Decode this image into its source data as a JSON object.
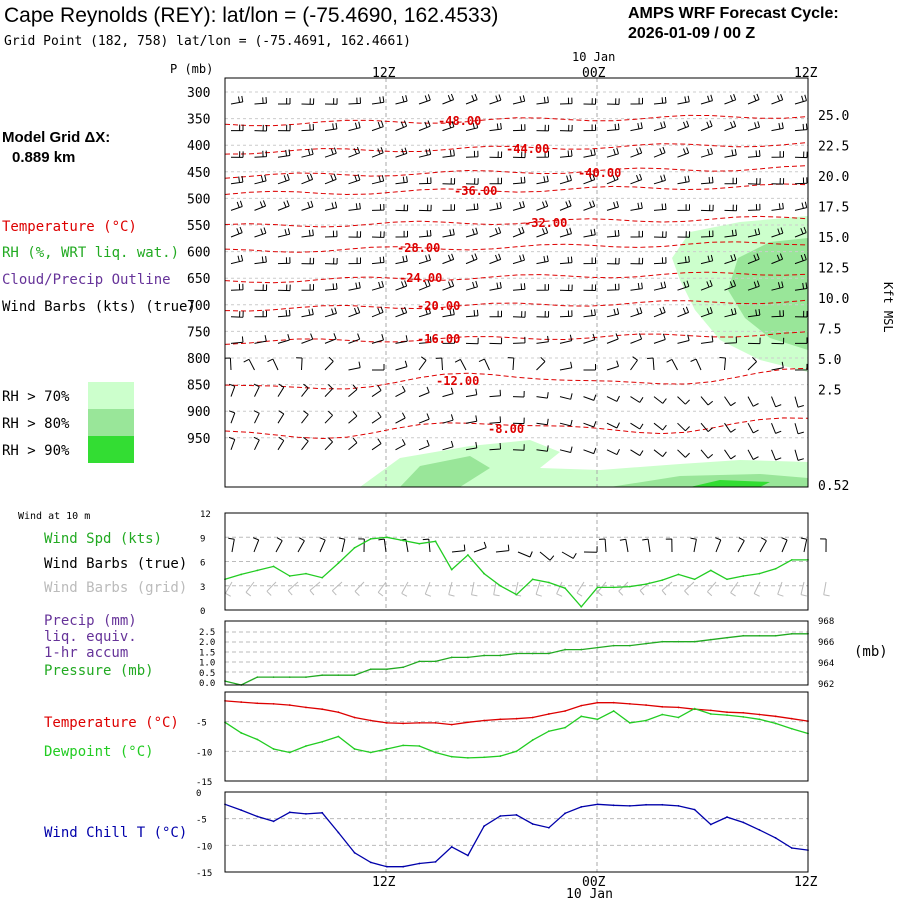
{
  "header": {
    "station_title": "Cape Reynolds (REY):  lat/lon = (-75.4690, 162.4533)",
    "grid_point": "Grid Point (182, 758) lat/lon = (-75.4691, 162.4661)",
    "cycle_label": "AMPS WRF Forecast Cycle:",
    "cycle_value": "2026-01-09 / 00  Z"
  },
  "sidebar": {
    "model_grid_label": "Model Grid ΔX:",
    "model_grid_value": "0.889 km",
    "legend": {
      "temperature": "Temperature (°C)",
      "rh": "RH (%, WRT liq. wat.)",
      "cloud": "Cloud/Precip Outline",
      "wind": "Wind Barbs (kts) (true)"
    },
    "rh_levels": [
      {
        "label": "RH > 70%",
        "color": "#ccffcc"
      },
      {
        "label": "RH > 80%",
        "color": "#99e699"
      },
      {
        "label": "RH > 90%",
        "color": "#33dd33"
      }
    ]
  },
  "colors": {
    "temperature": "#dd0000",
    "rh": "#22aa22",
    "cloud": "#663399",
    "dewpoint": "#22cc22",
    "windchill": "#0000aa",
    "grid_barbs": "#bbbbbb"
  },
  "chart_data": [
    {
      "type": "cross-section",
      "name": "profile",
      "y_title": "P (mb)",
      "right_title": "Kft MSL",
      "date_label": "10 Jan",
      "x_ticks": [
        "12Z",
        "00Z",
        "12Z"
      ],
      "p_levels": [
        300,
        350,
        400,
        450,
        500,
        550,
        600,
        650,
        700,
        750,
        800,
        850,
        900,
        950
      ],
      "kft_labels": [
        "25.0",
        "22.5",
        "20.0",
        "17.5",
        "15.0",
        "12.5",
        "10.0",
        "7.5",
        "5.0",
        "2.5",
        "0.52"
      ],
      "isotherm_labels": [
        "-48.00",
        "-44.00",
        "-40.00",
        "-36.00",
        "-32.00",
        "-28.00",
        "-24.00",
        "-20.00",
        "-16.00",
        "-12.00",
        "-8.00"
      ]
    },
    {
      "type": "line",
      "name": "wind_10m",
      "title": "Wind at 10 m",
      "label_speed": "Wind Spd (kts)",
      "label_barbs_true": "Wind Barbs (true)",
      "label_barbs_grid": "Wind Barbs (grid)",
      "y_ticks": [
        "12",
        "9",
        "6",
        "3",
        "0"
      ],
      "ylim": [
        0,
        12
      ],
      "x": [
        0,
        1,
        2,
        3,
        4,
        5,
        6,
        7,
        8,
        9,
        10,
        11,
        12,
        13,
        14,
        15,
        16,
        17,
        18,
        19,
        20,
        21,
        22,
        23,
        24,
        25,
        26,
        27,
        28,
        29,
        30,
        31,
        32,
        33,
        34,
        35,
        36
      ],
      "wind_speed_kts": [
        3.8,
        4.4,
        4.9,
        5.4,
        4.2,
        4.5,
        4.0,
        5.8,
        7.7,
        8.8,
        9.0,
        8.6,
        8.2,
        8.5,
        5.0,
        6.8,
        4.5,
        3.0,
        1.9,
        3.8,
        3.4,
        2.7,
        0.4,
        2.8,
        2.8,
        2.9,
        3.2,
        3.7,
        4.4,
        3.8,
        4.9,
        3.8,
        4.2,
        4.5,
        5.1,
        6.2,
        6.2
      ]
    },
    {
      "type": "line",
      "name": "precip_pressure",
      "label_precip": "Precip (mm)",
      "label_liq": "liq. equiv.",
      "label_accum": "1-hr accum",
      "label_pressure": "Pressure (mb)",
      "right_unit": "(mb)",
      "left_ticks": [
        "2.5",
        "2.0",
        "1.5",
        "1.0",
        "0.5",
        "0.0"
      ],
      "right_ticks": [
        "968",
        "966",
        "964",
        "962"
      ],
      "ylim_pressure": [
        962,
        968.5
      ],
      "x": [
        0,
        1,
        2,
        3,
        4,
        5,
        6,
        7,
        8,
        9,
        10,
        11,
        12,
        13,
        14,
        15,
        16,
        17,
        18,
        19,
        20,
        21,
        22,
        23,
        24,
        25,
        26,
        27,
        28,
        29,
        30,
        31,
        32,
        33,
        34,
        35,
        36
      ],
      "pressure_mb": [
        962.4,
        962.0,
        962.8,
        962.8,
        962.8,
        962.8,
        963.0,
        963.0,
        963.0,
        963.6,
        963.6,
        963.8,
        964.4,
        964.4,
        964.8,
        964.8,
        965.0,
        965.0,
        965.2,
        965.2,
        965.2,
        965.6,
        965.6,
        965.8,
        966.0,
        966.0,
        966.2,
        966.4,
        966.4,
        966.4,
        966.6,
        966.8,
        967.0,
        967.0,
        967.0,
        967.2,
        967.2
      ]
    },
    {
      "type": "line",
      "name": "temp_dewpoint",
      "label_temp": "Temperature (°C)",
      "label_dew": "Dewpoint (°C)",
      "y_ticks": [
        "-5",
        "-10",
        "-15"
      ],
      "ylim": [
        -15,
        0
      ],
      "x": [
        0,
        1,
        2,
        3,
        4,
        5,
        6,
        7,
        8,
        9,
        10,
        11,
        12,
        13,
        14,
        15,
        16,
        17,
        18,
        19,
        20,
        21,
        22,
        23,
        24,
        25,
        26,
        27,
        28,
        29,
        30,
        31,
        32,
        33,
        34,
        35,
        36
      ],
      "temperature_c": [
        -1.5,
        -1.7,
        -1.9,
        -2.0,
        -2.2,
        -2.6,
        -2.9,
        -3.4,
        -4.3,
        -4.8,
        -5.2,
        -5.3,
        -5.2,
        -5.2,
        -5.5,
        -5.1,
        -4.8,
        -4.6,
        -4.5,
        -4.3,
        -3.7,
        -3.2,
        -2.3,
        -1.8,
        -1.8,
        -2.0,
        -2.2,
        -2.5,
        -2.6,
        -2.9,
        -3.1,
        -3.4,
        -3.5,
        -3.8,
        -4.1,
        -4.5,
        -4.9
      ],
      "dewpoint_c": [
        -5.1,
        -6.9,
        -8.0,
        -9.6,
        -10.2,
        -9.1,
        -8.4,
        -7.5,
        -9.6,
        -10.2,
        -9.6,
        -9.0,
        -9.1,
        -10.2,
        -10.9,
        -11.1,
        -11.0,
        -10.8,
        -10.0,
        -8.1,
        -6.6,
        -6.0,
        -4.1,
        -4.6,
        -3.2,
        -5.2,
        -4.8,
        -3.8,
        -4.3,
        -2.8,
        -3.7,
        -3.9,
        -4.2,
        -4.6,
        -5.3,
        -6.2,
        -7.0
      ]
    },
    {
      "type": "line",
      "name": "wind_chill",
      "label": "Wind Chill T (°C)",
      "y_ticks": [
        "0",
        "-5",
        "-10",
        "-15"
      ],
      "ylim": [
        -15,
        0
      ],
      "x_ticks": [
        "12Z",
        "00Z",
        "12Z"
      ],
      "date_label": "10 Jan",
      "x": [
        0,
        1,
        2,
        3,
        4,
        5,
        6,
        7,
        8,
        9,
        10,
        11,
        12,
        13,
        14,
        15,
        16,
        17,
        18,
        19,
        20,
        21,
        22,
        23,
        24,
        25,
        26,
        27,
        28,
        29,
        30,
        31,
        32,
        33,
        34,
        35,
        36
      ],
      "wind_chill_c": [
        -2.3,
        -3.4,
        -4.6,
        -5.5,
        -3.8,
        -4.1,
        -3.9,
        -7.6,
        -11.4,
        -13.2,
        -14.0,
        -14.0,
        -13.4,
        -13.1,
        -10.3,
        -11.9,
        -6.4,
        -4.5,
        -4.3,
        -6.0,
        -6.7,
        -4.0,
        -2.8,
        -2.3,
        -2.5,
        -2.6,
        -2.4,
        -2.4,
        -2.6,
        -3.3,
        -6.1,
        -4.7,
        -5.7,
        -7.1,
        -8.6,
        -10.5,
        -10.9
      ]
    }
  ]
}
